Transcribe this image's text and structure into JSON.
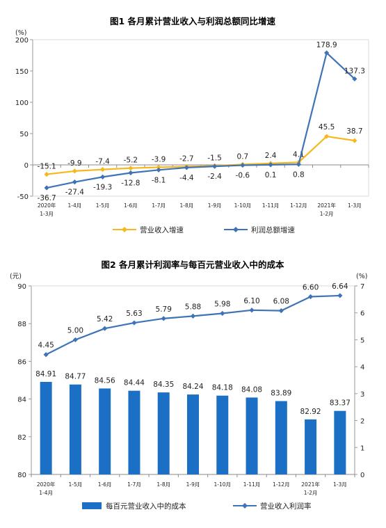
{
  "chart_data": [
    {
      "type": "line",
      "title": "图1  各月累计营业收入与利润总额同比增速",
      "unit": "(%)",
      "categories": [
        [
          "2020年",
          "1-3月"
        ],
        [
          "1-4月"
        ],
        [
          "1-5月"
        ],
        [
          "1-6月"
        ],
        [
          "1-7月"
        ],
        [
          "1-8月"
        ],
        [
          "1-9月"
        ],
        [
          "1-10月"
        ],
        [
          "1-11月"
        ],
        [
          "1-12月"
        ],
        [
          "2021年",
          "1-2月"
        ],
        [
          "1-3月"
        ]
      ],
      "ylim": [
        -50,
        200
      ],
      "yticks": [
        "-50",
        "0",
        "50",
        "100",
        "150",
        "200"
      ],
      "series": [
        {
          "name": "营业收入增速",
          "color": "#F6B81C",
          "values": [
            -15.1,
            -9.9,
            -7.4,
            -5.2,
            -3.9,
            -2.7,
            -1.5,
            0.7,
            2.4,
            4.1,
            45.5,
            38.7
          ],
          "labels": [
            "-15.1",
            "-9.9",
            "-7.4",
            "-5.2",
            "-3.9",
            "-2.7",
            "-1.5",
            "0.7",
            "2.4",
            "4.1",
            "45.5",
            "38.7"
          ]
        },
        {
          "name": "利润总额增速",
          "color": "#3E73B8",
          "values": [
            -36.7,
            -27.4,
            -19.3,
            -12.8,
            -8.1,
            -4.4,
            -2.4,
            -0.6,
            0.1,
            0.8,
            178.9,
            137.3
          ],
          "labels": [
            "-36.7",
            "-27.4",
            "-19.3",
            "-12.8",
            "-8.1",
            "-4.4",
            "-2.4",
            "-0.6",
            "0.1",
            "0.8",
            "178.9",
            "137.3"
          ]
        }
      ],
      "legend": "bottom"
    },
    {
      "type": "bar+line",
      "title": "图2  各月累计利润率与每百元营业收入中的成本",
      "unit_left": "(元)",
      "unit_right": "(%)",
      "categories": [
        [
          "2020年",
          "1-4月"
        ],
        [
          "1-5月"
        ],
        [
          "1-6月"
        ],
        [
          "1-7月"
        ],
        [
          "1-8月"
        ],
        [
          "1-9月"
        ],
        [
          "1-10月"
        ],
        [
          "1-11月"
        ],
        [
          "1-12月"
        ],
        [
          "2021年",
          "1-2月"
        ],
        [
          "1-3月"
        ]
      ],
      "ylim_left": [
        80,
        90
      ],
      "yticks_left": [
        "80",
        "82",
        "84",
        "86",
        "88",
        "90"
      ],
      "ylim_right": [
        0,
        7
      ],
      "yticks_right": [
        "0",
        "1",
        "2",
        "3",
        "4",
        "5",
        "6",
        "7"
      ],
      "bar_series": {
        "name": "每百元营业收入中的成本",
        "color": "#1B6FC4",
        "values": [
          84.91,
          84.77,
          84.56,
          84.44,
          84.35,
          84.24,
          84.18,
          84.08,
          83.89,
          82.92,
          83.37
        ],
        "labels": [
          "84.91",
          "84.77",
          "84.56",
          "84.44",
          "84.35",
          "84.24",
          "84.18",
          "84.08",
          "83.89",
          "82.92",
          "83.37"
        ]
      },
      "line_series": {
        "name": "营业收入利润率",
        "color": "#3E73B8",
        "values": [
          4.45,
          5.0,
          5.42,
          5.63,
          5.79,
          5.88,
          5.98,
          6.1,
          6.08,
          6.6,
          6.64
        ],
        "labels": [
          "4.45",
          "5.00",
          "5.42",
          "5.63",
          "5.79",
          "5.88",
          "5.98",
          "6.10",
          "6.08",
          "6.60",
          "6.64"
        ]
      },
      "legend": "bottom"
    }
  ]
}
